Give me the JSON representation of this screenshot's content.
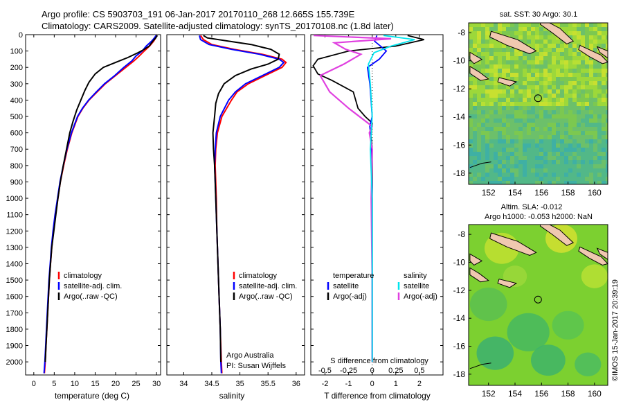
{
  "header": {
    "line1": "Argo profile: CS 5903703_191 06-Jan-2017 20170110_268 12.665S 155.739E",
    "line2": "Climatology: CARS2009. Satellite-adjusted climatology: synTS_20170108.nc (1.8d later)"
  },
  "sidebar_text": "©IMOS 15-Jan-2017 20:39:19",
  "colors": {
    "climatology": "#ff0000",
    "satellite": "#0000ff",
    "argo": "#000000",
    "salinity_satellite": "#00e5ee",
    "salinity_argo": "#e040e0",
    "land": "#f0c8b0"
  },
  "chart_data": [
    {
      "type": "line",
      "id": "temperature",
      "xlabel": "temperature (deg C)",
      "ylabel": "",
      "xlim": [
        -2,
        31
      ],
      "ylim": [
        2080,
        0
      ],
      "xticks": [
        0,
        5,
        10,
        15,
        20,
        25,
        30
      ],
      "yticks": [
        0,
        100,
        200,
        300,
        400,
        500,
        600,
        700,
        800,
        900,
        1000,
        1100,
        1200,
        1300,
        1400,
        1500,
        1600,
        1700,
        1800,
        1900,
        2000
      ],
      "legend": [
        "climatology",
        "satellite-adj. clim.",
        "Argo(..raw -QC)"
      ],
      "series": [
        {
          "name": "climatology",
          "color": "#ff0000",
          "points": [
            [
              30.0,
              5
            ],
            [
              29.8,
              20
            ],
            [
              29.3,
              40
            ],
            [
              28.3,
              70
            ],
            [
              27,
              100
            ],
            [
              25.8,
              130
            ],
            [
              24.5,
              160
            ],
            [
              22.5,
              200
            ],
            [
              20,
              250
            ],
            [
              17.5,
              300
            ],
            [
              15.5,
              350
            ],
            [
              13.5,
              400
            ],
            [
              12,
              450
            ],
            [
              10.8,
              500
            ],
            [
              9.3,
              600
            ],
            [
              8.2,
              700
            ],
            [
              7.3,
              800
            ],
            [
              6.5,
              900
            ],
            [
              5.9,
              1000
            ],
            [
              5.3,
              1100
            ],
            [
              4.8,
              1200
            ],
            [
              4.4,
              1300
            ],
            [
              4.1,
              1400
            ],
            [
              3.8,
              1500
            ],
            [
              3.6,
              1600
            ],
            [
              3.4,
              1700
            ],
            [
              3.2,
              1800
            ],
            [
              3.0,
              1900
            ],
            [
              2.8,
              2000
            ],
            [
              2.6,
              2070
            ]
          ]
        },
        {
          "name": "satellite-adj. clim.",
          "color": "#0000ff",
          "points": [
            [
              29.9,
              5
            ],
            [
              29.5,
              20
            ],
            [
              28.8,
              40
            ],
            [
              27.5,
              70
            ],
            [
              26.5,
              100
            ],
            [
              25,
              130
            ],
            [
              24,
              160
            ],
            [
              22,
              200
            ],
            [
              19.8,
              250
            ],
            [
              17.3,
              300
            ],
            [
              15.3,
              350
            ],
            [
              13.4,
              400
            ],
            [
              11.9,
              450
            ],
            [
              10.7,
              500
            ],
            [
              9.2,
              600
            ],
            [
              8.1,
              700
            ],
            [
              7.2,
              800
            ],
            [
              6.4,
              900
            ],
            [
              5.8,
              1000
            ],
            [
              5.2,
              1100
            ],
            [
              4.7,
              1200
            ],
            [
              4.3,
              1300
            ],
            [
              4,
              1400
            ],
            [
              3.7,
              1500
            ],
            [
              3.5,
              1600
            ],
            [
              3.3,
              1700
            ],
            [
              3.1,
              1800
            ],
            [
              2.9,
              1900
            ],
            [
              2.7,
              2000
            ],
            [
              2.5,
              2070
            ]
          ]
        },
        {
          "name": "Argo(..raw -QC)",
          "color": "#000000",
          "points": [
            [
              30.2,
              5
            ],
            [
              29.8,
              20
            ],
            [
              29.1,
              40
            ],
            [
              28.2,
              70
            ],
            [
              27,
              90
            ],
            [
              25.5,
              110
            ],
            [
              23,
              140
            ],
            [
              20,
              170
            ],
            [
              17,
              200
            ],
            [
              15,
              240
            ],
            [
              13.5,
              290
            ],
            [
              12.5,
              340
            ],
            [
              11.5,
              400
            ],
            [
              10.5,
              460
            ],
            [
              9.6,
              530
            ],
            [
              8.8,
              600
            ],
            [
              8,
              700
            ],
            [
              7.2,
              800
            ],
            [
              6.5,
              900
            ],
            [
              5.9,
              1000
            ],
            [
              5.4,
              1100
            ],
            [
              4.9,
              1200
            ],
            [
              4.4,
              1300
            ],
            [
              4.1,
              1400
            ],
            [
              3.8,
              1500
            ],
            [
              3.6,
              1600
            ],
            [
              3.4,
              1700
            ],
            [
              3.2,
              1800
            ],
            [
              3,
              1900
            ],
            [
              2.8,
              2000
            ]
          ]
        }
      ]
    },
    {
      "type": "line",
      "id": "salinity",
      "xlabel": "salinity",
      "ylabel": "",
      "xlim": [
        33.7,
        36.15
      ],
      "ylim": [
        2080,
        0
      ],
      "xticks": [
        34,
        34.5,
        35,
        35.5,
        36
      ],
      "legend": [
        "climatology",
        "satellite-adj. clim.",
        "Argo(..raw -QC)"
      ],
      "annotation": [
        "Argo Australia",
        "PI: Susan Wijffels"
      ],
      "series": [
        {
          "name": "climatology",
          "color": "#ff0000",
          "points": [
            [
              34.3,
              5
            ],
            [
              34.35,
              30
            ],
            [
              34.5,
              60
            ],
            [
              34.9,
              90
            ],
            [
              35.4,
              120
            ],
            [
              35.75,
              150
            ],
            [
              35.82,
              170
            ],
            [
              35.75,
              200
            ],
            [
              35.45,
              250
            ],
            [
              35.15,
              300
            ],
            [
              34.95,
              350
            ],
            [
              34.85,
              400
            ],
            [
              34.68,
              500
            ],
            [
              34.6,
              600
            ],
            [
              34.57,
              700
            ],
            [
              34.56,
              800
            ],
            [
              34.57,
              900
            ],
            [
              34.58,
              1000
            ],
            [
              34.59,
              1200
            ],
            [
              34.61,
              1400
            ],
            [
              34.63,
              1600
            ],
            [
              34.65,
              1800
            ],
            [
              34.67,
              2000
            ],
            [
              34.68,
              2070
            ]
          ]
        },
        {
          "name": "satellite-adj. clim.",
          "color": "#0000ff",
          "points": [
            [
              34.28,
              5
            ],
            [
              34.3,
              30
            ],
            [
              34.45,
              60
            ],
            [
              34.85,
              90
            ],
            [
              35.35,
              120
            ],
            [
              35.7,
              150
            ],
            [
              35.78,
              170
            ],
            [
              35.7,
              200
            ],
            [
              35.4,
              250
            ],
            [
              35.1,
              300
            ],
            [
              34.92,
              350
            ],
            [
              34.8,
              400
            ],
            [
              34.65,
              500
            ],
            [
              34.58,
              600
            ],
            [
              34.56,
              700
            ],
            [
              34.55,
              800
            ],
            [
              34.56,
              900
            ],
            [
              34.57,
              1000
            ],
            [
              34.59,
              1200
            ],
            [
              34.61,
              1400
            ],
            [
              34.63,
              1600
            ],
            [
              34.65,
              1800
            ],
            [
              34.66,
              2000
            ],
            [
              34.67,
              2070
            ]
          ]
        },
        {
          "name": "Argo(..raw -QC)",
          "color": "#000000",
          "points": [
            [
              34.35,
              5
            ],
            [
              34.42,
              20
            ],
            [
              34.8,
              40
            ],
            [
              35.2,
              60
            ],
            [
              35.55,
              90
            ],
            [
              35.7,
              120
            ],
            [
              35.68,
              150
            ],
            [
              35.5,
              180
            ],
            [
              35.2,
              210
            ],
            [
              34.92,
              250
            ],
            [
              34.72,
              300
            ],
            [
              34.62,
              360
            ],
            [
              34.57,
              420
            ],
            [
              34.55,
              500
            ],
            [
              34.52,
              600
            ],
            [
              34.53,
              700
            ],
            [
              34.55,
              800
            ],
            [
              34.57,
              1000
            ],
            [
              34.59,
              1200
            ],
            [
              34.61,
              1400
            ],
            [
              34.63,
              1600
            ],
            [
              34.65,
              1800
            ],
            [
              34.66,
              2000
            ]
          ]
        }
      ]
    },
    {
      "type": "line",
      "id": "difference",
      "xlabel": "T difference from climatology",
      "xlabel2": "S difference from climatology",
      "xlim": [
        -2.6,
        3.0
      ],
      "xlim_salinity": [
        -0.65,
        0.75
      ],
      "ylim": [
        2080,
        0
      ],
      "xticks": [
        -2,
        -1,
        0,
        1,
        2
      ],
      "xticks_salinity": [
        "-0.5",
        "-0.25",
        "0",
        "0.25",
        "0.5"
      ],
      "legend_temperature": {
        "header": "temperature",
        "items": [
          "satellite",
          "Argo(-adj)"
        ]
      },
      "legend_salinity": {
        "header": "salinity",
        "items": [
          "satellite",
          "Argo(-adj)"
        ]
      },
      "series": [
        {
          "name": "temperature satellite",
          "color": "#0000ff",
          "points": [
            [
              0.2,
              5
            ],
            [
              0.1,
              40
            ],
            [
              0.6,
              100
            ],
            [
              0.3,
              150
            ],
            [
              -0.2,
              200
            ],
            [
              -0.1,
              300
            ],
            [
              -0.05,
              400
            ],
            [
              0,
              500
            ],
            [
              -0.1,
              560
            ],
            [
              -0.05,
              650
            ],
            [
              -0.02,
              800
            ],
            [
              0,
              1000
            ],
            [
              0,
              1500
            ],
            [
              0,
              2000
            ]
          ]
        },
        {
          "name": "temperature Argo(-adj)",
          "color": "#000000",
          "points": [
            [
              1.5,
              5
            ],
            [
              2.2,
              30
            ],
            [
              1.0,
              70
            ],
            [
              -1.0,
              100
            ],
            [
              -2.3,
              150
            ],
            [
              -2.5,
              190
            ],
            [
              -2.3,
              240
            ],
            [
              -1.7,
              280
            ],
            [
              -0.8,
              350
            ],
            [
              -0.6,
              450
            ],
            [
              -0.3,
              500
            ],
            [
              0,
              540
            ],
            [
              -0.05,
              620
            ],
            [
              0,
              700
            ],
            [
              0,
              1000
            ],
            [
              0,
              1500
            ],
            [
              0,
              2000
            ]
          ]
        },
        {
          "name": "salinity satellite",
          "color": "#00e5ee",
          "points": [
            [
              0.12,
              5
            ],
            [
              0.45,
              30
            ],
            [
              0.2,
              70
            ],
            [
              0.02,
              110
            ],
            [
              -0.04,
              180
            ],
            [
              -0.02,
              300
            ],
            [
              0,
              500
            ],
            [
              -0.02,
              700
            ],
            [
              0,
              1000
            ],
            [
              0,
              1500
            ],
            [
              0,
              2000
            ]
          ]
        },
        {
          "name": "salinity Argo(-adj)",
          "color": "#e040e0",
          "points": [
            [
              -0.62,
              5
            ],
            [
              0.2,
              25
            ],
            [
              -0.4,
              50
            ],
            [
              -0.28,
              90
            ],
            [
              -0.12,
              120
            ],
            [
              -0.3,
              180
            ],
            [
              -0.55,
              250
            ],
            [
              -0.45,
              350
            ],
            [
              -0.25,
              450
            ],
            [
              0,
              560
            ],
            [
              -0.03,
              600
            ],
            [
              0,
              700
            ],
            [
              -0.01,
              1000
            ],
            [
              0,
              1500
            ],
            [
              0,
              2000
            ]
          ]
        }
      ]
    },
    {
      "type": "heatmap",
      "id": "sst-map",
      "title": "sat. SST: 30 Argo: 30.1",
      "xlim": [
        150.5,
        161
      ],
      "ylim": [
        -18.8,
        -7.3
      ],
      "xticks": [
        152,
        154,
        156,
        158,
        160
      ],
      "yticks": [
        -8,
        -10,
        -12,
        -14,
        -16,
        -18
      ],
      "marker": {
        "lon": 155.739,
        "lat": -12.665
      }
    },
    {
      "type": "heatmap",
      "id": "sla-map",
      "title": "Altim. SLA: -0.012",
      "subtitle": "Argo h1000: -0.053 h2000: NaN",
      "xlim": [
        150.5,
        161
      ],
      "ylim": [
        -18.8,
        -7.3
      ],
      "xticks": [
        152,
        154,
        156,
        158,
        160
      ],
      "yticks": [
        -8,
        -10,
        -12,
        -14,
        -16,
        -18
      ],
      "marker": {
        "lon": 155.739,
        "lat": -12.665
      }
    }
  ]
}
